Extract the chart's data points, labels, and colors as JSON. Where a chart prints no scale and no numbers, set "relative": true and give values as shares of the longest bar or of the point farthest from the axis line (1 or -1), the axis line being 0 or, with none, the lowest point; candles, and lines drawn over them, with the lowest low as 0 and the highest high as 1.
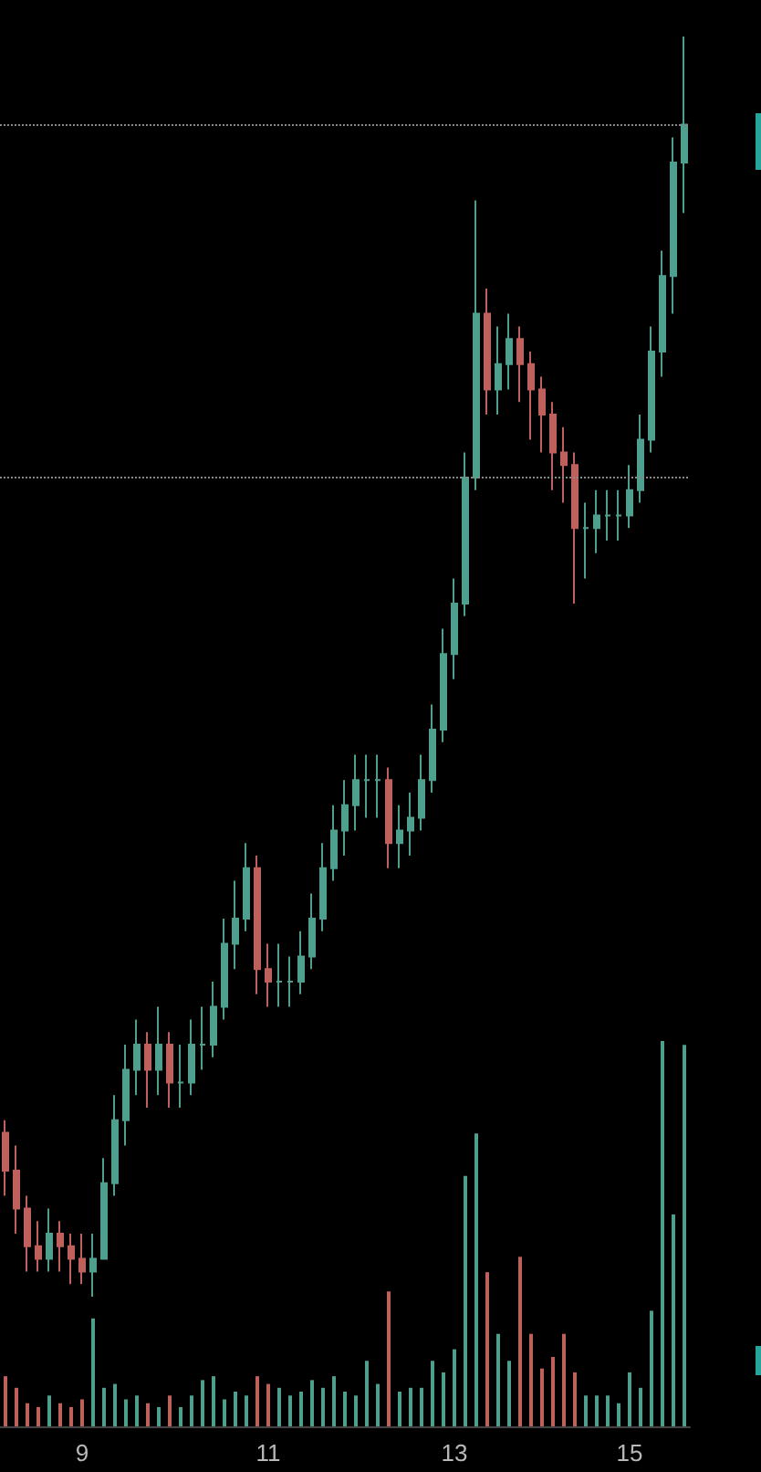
{
  "chart_data": [
    {
      "type": "candlestick",
      "relative": true,
      "tick_labels": false,
      "grid": false,
      "categories": [
        null,
        null,
        null,
        null,
        null,
        null,
        null,
        "9",
        null,
        null,
        null,
        null,
        null,
        null,
        null,
        null,
        null,
        null,
        null,
        null,
        null,
        null,
        null,
        null,
        "11",
        null,
        null,
        null,
        null,
        null,
        null,
        null,
        null,
        null,
        null,
        null,
        null,
        null,
        null,
        null,
        null,
        "13",
        null,
        null,
        null,
        null,
        null,
        null,
        null,
        null,
        null,
        null,
        null,
        null,
        null,
        null,
        null,
        "15",
        null,
        null,
        null,
        null,
        null
      ],
      "ohlc": [
        [
          0.13,
          0.14,
          0.08,
          0.1
        ],
        [
          0.1,
          0.12,
          0.05,
          0.07
        ],
        [
          0.07,
          0.08,
          0.02,
          0.04
        ],
        [
          0.04,
          0.06,
          0.02,
          0.03
        ],
        [
          0.03,
          0.07,
          0.02,
          0.05
        ],
        [
          0.05,
          0.06,
          0.02,
          0.04
        ],
        [
          0.04,
          0.05,
          0.01,
          0.03
        ],
        [
          0.03,
          0.05,
          0.01,
          0.02
        ],
        [
          0.02,
          0.05,
          0,
          0.03
        ],
        [
          0.03,
          0.11,
          0.03,
          0.09
        ],
        [
          0.09,
          0.16,
          0.08,
          0.14
        ],
        [
          0.14,
          0.2,
          0.12,
          0.18
        ],
        [
          0.18,
          0.22,
          0.16,
          0.2
        ],
        [
          0.2,
          0.21,
          0.15,
          0.18
        ],
        [
          0.18,
          0.23,
          0.16,
          0.2
        ],
        [
          0.2,
          0.21,
          0.15,
          0.17
        ],
        [
          0.17,
          0.2,
          0.15,
          0.17
        ],
        [
          0.17,
          0.22,
          0.16,
          0.2
        ],
        [
          0.2,
          0.23,
          0.18,
          0.2
        ],
        [
          0.2,
          0.25,
          0.19,
          0.23
        ],
        [
          0.23,
          0.3,
          0.22,
          0.28
        ],
        [
          0.28,
          0.33,
          0.26,
          0.3
        ],
        [
          0.3,
          0.36,
          0.29,
          0.34
        ],
        [
          0.34,
          0.35,
          0.24,
          0.26
        ],
        [
          0.26,
          0.28,
          0.23,
          0.25
        ],
        [
          0.25,
          0.28,
          0.23,
          0.25
        ],
        [
          0.25,
          0.27,
          0.23,
          0.25
        ],
        [
          0.25,
          0.29,
          0.24,
          0.27
        ],
        [
          0.27,
          0.32,
          0.26,
          0.3
        ],
        [
          0.3,
          0.36,
          0.29,
          0.34
        ],
        [
          0.34,
          0.39,
          0.33,
          0.37
        ],
        [
          0.37,
          0.41,
          0.35,
          0.39
        ],
        [
          0.39,
          0.43,
          0.37,
          0.41
        ],
        [
          0.41,
          0.43,
          0.38,
          0.41
        ],
        [
          0.41,
          0.43,
          0.38,
          0.41
        ],
        [
          0.41,
          0.42,
          0.34,
          0.36
        ],
        [
          0.36,
          0.39,
          0.34,
          0.37
        ],
        [
          0.37,
          0.4,
          0.35,
          0.38
        ],
        [
          0.38,
          0.43,
          0.37,
          0.41
        ],
        [
          0.41,
          0.47,
          0.4,
          0.45
        ],
        [
          0.45,
          0.53,
          0.44,
          0.51
        ],
        [
          0.51,
          0.57,
          0.49,
          0.55
        ],
        [
          0.55,
          0.67,
          0.54,
          0.65
        ],
        [
          0.65,
          0.87,
          0.64,
          0.78
        ],
        [
          0.78,
          0.8,
          0.7,
          0.72
        ],
        [
          0.72,
          0.77,
          0.7,
          0.74
        ],
        [
          0.74,
          0.78,
          0.72,
          0.76
        ],
        [
          0.76,
          0.77,
          0.71,
          0.74
        ],
        [
          0.74,
          0.75,
          0.68,
          0.72
        ],
        [
          0.72,
          0.73,
          0.67,
          0.7
        ],
        [
          0.7,
          0.71,
          0.64,
          0.67
        ],
        [
          0.67,
          0.69,
          0.63,
          0.66
        ],
        [
          0.66,
          0.67,
          0.55,
          0.61
        ],
        [
          0.61,
          0.63,
          0.57,
          0.61
        ],
        [
          0.61,
          0.64,
          0.59,
          0.62
        ],
        [
          0.62,
          0.64,
          0.6,
          0.62
        ],
        [
          0.62,
          0.64,
          0.6,
          0.62
        ],
        [
          0.62,
          0.66,
          0.61,
          0.64
        ],
        [
          0.64,
          0.7,
          0.63,
          0.68
        ],
        [
          0.68,
          0.77,
          0.67,
          0.75
        ],
        [
          0.75,
          0.83,
          0.73,
          0.81
        ],
        [
          0.81,
          0.92,
          0.78,
          0.9
        ],
        [
          0.9,
          1,
          0.86,
          0.93
        ]
      ],
      "ref_lines": [
        {
          "axis": "y",
          "value": 0.93,
          "color": "#8a8a8a",
          "line_style": "dotted"
        },
        {
          "axis": "y",
          "value": 0.65,
          "color": "#8a8a8a",
          "line_style": "dotted"
        }
      ]
    },
    {
      "type": "bar",
      "relative": true,
      "tick_labels": "x",
      "grid": false,
      "categories": [
        null,
        null,
        null,
        null,
        null,
        null,
        null,
        "9",
        null,
        null,
        null,
        null,
        null,
        null,
        null,
        null,
        null,
        null,
        null,
        null,
        null,
        null,
        null,
        null,
        "11",
        null,
        null,
        null,
        null,
        null,
        null,
        null,
        null,
        null,
        null,
        null,
        null,
        null,
        null,
        null,
        null,
        "13",
        null,
        null,
        null,
        null,
        null,
        null,
        null,
        null,
        null,
        null,
        null,
        null,
        null,
        null,
        null,
        "15",
        null,
        null,
        null,
        null,
        null
      ],
      "values": [
        0.13,
        0.1,
        0.06,
        0.05,
        0.08,
        0.06,
        0.05,
        0.07,
        0.28,
        0.1,
        0.11,
        0.07,
        0.08,
        0.06,
        0.05,
        0.08,
        0.05,
        0.08,
        0.12,
        0.13,
        0.07,
        0.09,
        0.08,
        0.13,
        0.11,
        0.1,
        0.08,
        0.09,
        0.12,
        0.1,
        0.13,
        0.09,
        0.08,
        0.17,
        0.11,
        0.35,
        0.09,
        0.1,
        0.1,
        0.17,
        0.14,
        0.2,
        0.65,
        0.76,
        0.4,
        0.24,
        0.17,
        0.44,
        0.24,
        0.15,
        0.18,
        0.24,
        0.14,
        0.08,
        0.08,
        0.08,
        0.06,
        0.14,
        0.1,
        0.3,
        1,
        0.55,
        0.99
      ],
      "colors": [
        "#c0605c",
        "#c0605c",
        "#c0605c",
        "#c0605c",
        "#4e9f8e",
        "#c0605c",
        "#c0605c",
        "#c0605c",
        "#4e9f8e",
        "#4e9f8e",
        "#4e9f8e",
        "#4e9f8e",
        "#4e9f8e",
        "#c0605c",
        "#4e9f8e",
        "#c0605c",
        "#4e9f8e",
        "#4e9f8e",
        "#4e9f8e",
        "#4e9f8e",
        "#4e9f8e",
        "#4e9f8e",
        "#4e9f8e",
        "#c0605c",
        "#c0605c",
        "#4e9f8e",
        "#4e9f8e",
        "#4e9f8e",
        "#4e9f8e",
        "#4e9f8e",
        "#4e9f8e",
        "#4e9f8e",
        "#4e9f8e",
        "#4e9f8e",
        "#4e9f8e",
        "#c0605c",
        "#4e9f8e",
        "#4e9f8e",
        "#4e9f8e",
        "#4e9f8e",
        "#4e9f8e",
        "#4e9f8e",
        "#4e9f8e",
        "#4e9f8e",
        "#c0605c",
        "#4e9f8e",
        "#4e9f8e",
        "#c0605c",
        "#c0605c",
        "#c0605c",
        "#c0605c",
        "#c0605c",
        "#c0605c",
        "#4e9f8e",
        "#4e9f8e",
        "#4e9f8e",
        "#4e9f8e",
        "#4e9f8e",
        "#4e9f8e",
        "#4e9f8e",
        "#4e9f8e",
        "#4e9f8e",
        "#4e9f8e"
      ]
    }
  ]
}
